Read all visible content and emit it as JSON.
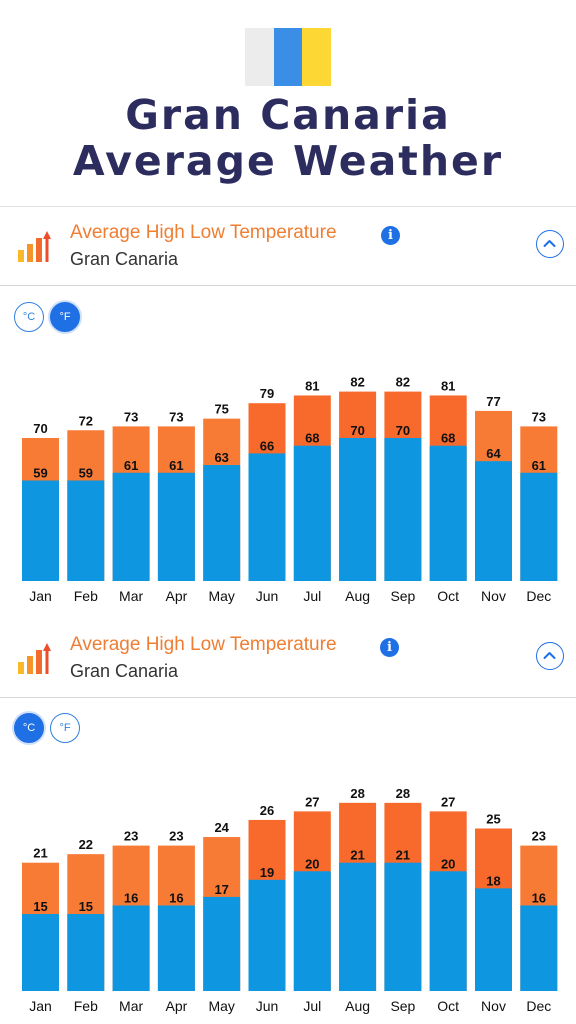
{
  "header": {
    "title_line1": "Gran Canaria",
    "title_line2": "Average Weather",
    "flag_colors": [
      "#ececec",
      "#3a8ee6",
      "#fdd835"
    ]
  },
  "panels": [
    {
      "title": "Average High Low Temperature",
      "location": "Gran Canaria",
      "units": [
        {
          "label": "°C",
          "active": false
        },
        {
          "label": "°F",
          "active": true
        }
      ],
      "icons": {
        "temp": "temperature-bars-icon",
        "info": "info-icon",
        "collapse": "chevron-up-icon"
      }
    },
    {
      "title": "Average High Low Temperature",
      "location": "Gran Canaria",
      "units": [
        {
          "label": "°C",
          "active": true
        },
        {
          "label": "°F",
          "active": false
        }
      ],
      "icons": {
        "temp": "temperature-bars-icon",
        "info": "info-icon",
        "collapse": "chevron-up-icon"
      }
    }
  ],
  "colors": {
    "high": "#f86a2c",
    "high_light": "#f77a35",
    "low": "#0e97e0",
    "accent": "#ef7d32",
    "button": "#1f6fe5"
  },
  "chart_data": [
    {
      "type": "bar",
      "unit": "°F",
      "categories": [
        "Jan",
        "Feb",
        "Mar",
        "Apr",
        "May",
        "Jun",
        "Jul",
        "Aug",
        "Sep",
        "Oct",
        "Nov",
        "Dec"
      ],
      "series": [
        {
          "values": [
            70,
            72,
            73,
            73,
            75,
            79,
            81,
            82,
            82,
            81,
            77,
            73
          ]
        },
        {
          "values": [
            59,
            59,
            61,
            61,
            63,
            66,
            68,
            70,
            70,
            68,
            64,
            61
          ]
        }
      ],
      "ylim": [
        33,
        85
      ]
    },
    {
      "type": "bar",
      "unit": "°C",
      "categories": [
        "Jan",
        "Feb",
        "Mar",
        "Apr",
        "May",
        "Jun",
        "Jul",
        "Aug",
        "Sep",
        "Oct",
        "Nov",
        "Dec"
      ],
      "series": [
        {
          "values": [
            21,
            22,
            23,
            23,
            24,
            26,
            27,
            28,
            28,
            27,
            25,
            23
          ]
        },
        {
          "values": [
            15,
            15,
            16,
            16,
            17,
            19,
            20,
            21,
            21,
            20,
            18,
            16
          ]
        }
      ],
      "ylim": [
        6,
        29.5
      ]
    }
  ]
}
